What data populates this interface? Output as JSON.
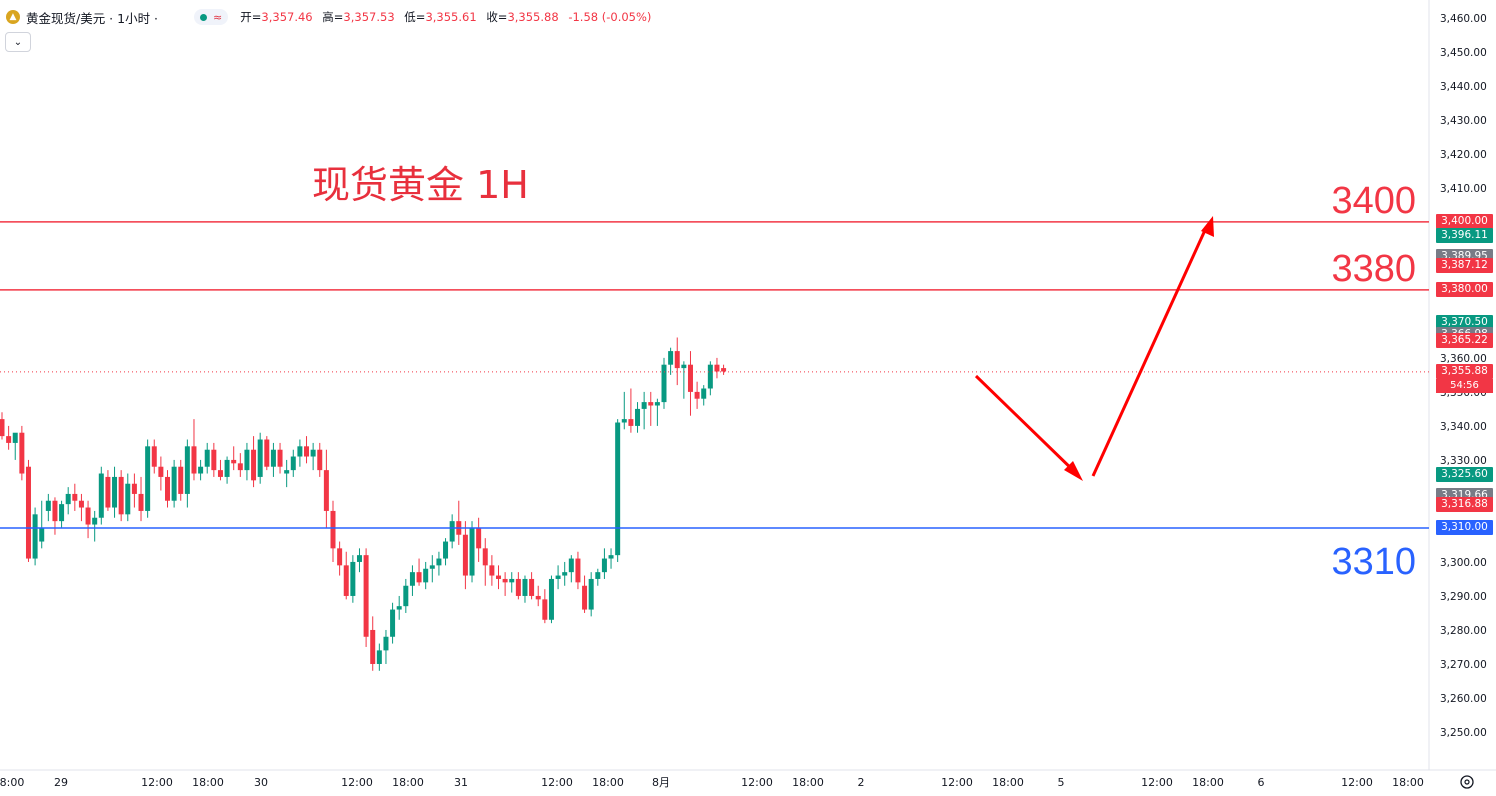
{
  "header": {
    "symbol": "黄金现货/美元 · 1小时 ·",
    "indicator": "≈",
    "open_label": "开=",
    "open": "3,357.46",
    "high_label": "高=",
    "high": "3,357.53",
    "low_label": "低=",
    "low": "3,355.61",
    "close_label": "收=",
    "close": "3,355.88",
    "change": "-1.58 (-0.05%)"
  },
  "collapse_icon": "chevron-down-icon",
  "price_tags": [
    {
      "id": "t3400",
      "text": "3,400.00",
      "color": "#f23645",
      "price": 3400
    },
    {
      "id": "t3396",
      "text": "3,396.11",
      "color": "#089981",
      "price": 3396.11
    },
    {
      "id": "t3389",
      "text": "3,389.95",
      "color": "#787b86",
      "price": 3389.95
    },
    {
      "id": "t3387",
      "text": "3,387.12",
      "color": "#f23645",
      "price": 3387.12
    },
    {
      "id": "t3380",
      "text": "3,380.00",
      "color": "#f23645",
      "price": 3380
    },
    {
      "id": "t3370",
      "text": "3,370.50",
      "color": "#089981",
      "price": 3370.5
    },
    {
      "id": "t3366",
      "text": "3,366.98",
      "color": "#787b86",
      "price": 3366.98
    },
    {
      "id": "t3365",
      "text": "3,365.22",
      "color": "#f23645",
      "price": 3365.22
    },
    {
      "id": "t3355",
      "text": "3,355.88",
      "color": "#f23645",
      "price": 3355.88
    },
    {
      "id": "t3325",
      "text": "3,325.60",
      "color": "#089981",
      "price": 3325.6
    },
    {
      "id": "t3319",
      "text": "3,319.66",
      "color": "#787b86",
      "price": 3319.66
    },
    {
      "id": "t3316",
      "text": "3,316.88",
      "color": "#f23645",
      "price": 3316.88
    },
    {
      "id": "t3310",
      "text": "3,310.00",
      "color": "#2962ff",
      "price": 3310
    }
  ],
  "countdown": "54:56",
  "chart_data": {
    "type": "candlestick",
    "title": "现货黄金 1H",
    "ylim": [
      3245,
      3462
    ],
    "y_ticks": [
      3250,
      3260,
      3270,
      3280,
      3290,
      3300,
      3310,
      3320,
      3330,
      3340,
      3350,
      3360,
      3370,
      3380,
      3390,
      3400,
      3410,
      3420,
      3430,
      3440,
      3450,
      3460
    ],
    "y_tick_labels": [
      "3,250.00",
      "3,260.00",
      "3,270.00",
      "3,280.00",
      "3,290.00",
      "3,300.00",
      "3,310.00",
      "3,320.00",
      "3,330.00",
      "3,340.00",
      "3,350.00",
      "3,360.00",
      "3,370.00",
      "3,380.00",
      "3,390.00",
      "3,400.00",
      "3,410.00",
      "3,420.00",
      "3,430.00",
      "3,440.00",
      "3,450.00",
      "3,460.00"
    ],
    "x_labels": [
      "8:00",
      "29",
      "12:00",
      "18:00",
      "30",
      "12:00",
      "18:00",
      "31",
      "12:00",
      "18:00",
      "8月",
      "12:00",
      "18:00",
      "2",
      "12:00",
      "18:00",
      "5",
      "12:00",
      "18:00",
      "6",
      "12:00",
      "18:00"
    ],
    "levels": [
      {
        "price": 3400,
        "label": "3400",
        "color": "#f23645"
      },
      {
        "price": 3380,
        "label": "3380",
        "color": "#f23645"
      },
      {
        "price": 3310,
        "label": "3310",
        "color": "#2962ff"
      }
    ],
    "current_price": 3355.88,
    "up_color": "#089981",
    "down_color": "#f23645",
    "candles": [
      [
        3342,
        3344,
        3336,
        3337
      ],
      [
        3337,
        3340,
        3333,
        3335
      ],
      [
        3335,
        3337,
        3330,
        3338
      ],
      [
        3338,
        3340,
        3324,
        3326
      ],
      [
        3328,
        3330,
        3300,
        3301
      ],
      [
        3301,
        3316,
        3299,
        3314
      ],
      [
        3306,
        3318,
        3304,
        3310
      ],
      [
        3315,
        3320,
        3312,
        3318
      ],
      [
        3318,
        3319,
        3308,
        3312
      ],
      [
        3312,
        3318,
        3310,
        3317
      ],
      [
        3317,
        3322,
        3314,
        3320
      ],
      [
        3320,
        3323,
        3315,
        3318
      ],
      [
        3318,
        3320,
        3312,
        3316
      ],
      [
        3316,
        3318,
        3307,
        3311
      ],
      [
        3311,
        3315,
        3306,
        3313
      ],
      [
        3313,
        3328,
        3311,
        3326
      ],
      [
        3325,
        3327,
        3315,
        3316
      ],
      [
        3316,
        3328,
        3313,
        3325
      ],
      [
        3325,
        3327,
        3312,
        3314
      ],
      [
        3314,
        3326,
        3312,
        3323
      ],
      [
        3323,
        3326,
        3316,
        3320
      ],
      [
        3320,
        3325,
        3312,
        3315
      ],
      [
        3315,
        3336,
        3313,
        3334
      ],
      [
        3334,
        3336,
        3326,
        3328
      ],
      [
        3328,
        3331,
        3321,
        3325
      ],
      [
        3325,
        3327,
        3316,
        3318
      ],
      [
        3318,
        3330,
        3316,
        3328
      ],
      [
        3328,
        3330,
        3318,
        3320
      ],
      [
        3320,
        3336,
        3316,
        3334
      ],
      [
        3334,
        3342,
        3324,
        3326
      ],
      [
        3326,
        3330,
        3324,
        3328
      ],
      [
        3328,
        3335,
        3326,
        3333
      ],
      [
        3333,
        3335,
        3325,
        3327
      ],
      [
        3327,
        3330,
        3324,
        3325
      ],
      [
        3325,
        3331,
        3323,
        3330
      ],
      [
        3330,
        3334,
        3327,
        3329
      ],
      [
        3329,
        3332,
        3325,
        3327
      ],
      [
        3327,
        3335,
        3324,
        3333
      ],
      [
        3333,
        3337,
        3322,
        3324
      ],
      [
        3325,
        3338,
        3323,
        3336
      ],
      [
        3336,
        3337,
        3327,
        3328
      ],
      [
        3328,
        3335,
        3325,
        3333
      ],
      [
        3333,
        3335,
        3326,
        3328
      ],
      [
        3326,
        3330,
        3322,
        3327
      ],
      [
        3327,
        3333,
        3325,
        3331
      ],
      [
        3331,
        3336,
        3328,
        3334
      ],
      [
        3334,
        3337,
        3329,
        3331
      ],
      [
        3331,
        3335,
        3327,
        3333
      ],
      [
        3333,
        3335,
        3325,
        3327
      ],
      [
        3327,
        3333,
        3310,
        3315
      ],
      [
        3315,
        3318,
        3300,
        3304
      ],
      [
        3304,
        3306,
        3296,
        3299
      ],
      [
        3299,
        3303,
        3289,
        3290
      ],
      [
        3290,
        3302,
        3288,
        3300
      ],
      [
        3300,
        3304,
        3297,
        3302
      ],
      [
        3302,
        3304,
        3275,
        3278
      ],
      [
        3280,
        3284,
        3268,
        3270
      ],
      [
        3270,
        3276,
        3268,
        3274
      ],
      [
        3274,
        3280,
        3270,
        3278
      ],
      [
        3278,
        3288,
        3276,
        3286
      ],
      [
        3286,
        3290,
        3283,
        3287
      ],
      [
        3287,
        3295,
        3285,
        3293
      ],
      [
        3293,
        3299,
        3290,
        3297
      ],
      [
        3297,
        3301,
        3293,
        3294
      ],
      [
        3294,
        3300,
        3292,
        3298
      ],
      [
        3298,
        3302,
        3294,
        3299
      ],
      [
        3299,
        3303,
        3296,
        3301
      ],
      [
        3301,
        3307,
        3299,
        3306
      ],
      [
        3306,
        3314,
        3304,
        3312
      ],
      [
        3312,
        3318,
        3305,
        3308
      ],
      [
        3308,
        3312,
        3292,
        3296
      ],
      [
        3296,
        3312,
        3294,
        3310
      ],
      [
        3310,
        3313,
        3300,
        3304
      ],
      [
        3304,
        3307,
        3293,
        3299
      ],
      [
        3299,
        3302,
        3293,
        3296
      ],
      [
        3296,
        3299,
        3292,
        3295
      ],
      [
        3295,
        3297,
        3290,
        3294
      ],
      [
        3294,
        3297,
        3291,
        3295
      ],
      [
        3295,
        3297,
        3289,
        3290
      ],
      [
        3290,
        3296,
        3288,
        3295
      ],
      [
        3295,
        3297,
        3289,
        3290
      ],
      [
        3290,
        3293,
        3287,
        3289
      ],
      [
        3289,
        3292,
        3282,
        3283
      ],
      [
        3283,
        3296,
        3282,
        3295
      ],
      [
        3295,
        3299,
        3292,
        3296
      ],
      [
        3296,
        3300,
        3293,
        3297
      ],
      [
        3297,
        3302,
        3294,
        3301
      ],
      [
        3301,
        3303,
        3292,
        3294
      ],
      [
        3293,
        3296,
        3285,
        3286
      ],
      [
        3286,
        3297,
        3284,
        3295
      ],
      [
        3295,
        3298,
        3293,
        3297
      ],
      [
        3297,
        3304,
        3295,
        3301
      ],
      [
        3301,
        3304,
        3298,
        3302
      ],
      [
        3302,
        3342,
        3300,
        3341
      ],
      [
        3341,
        3350,
        3339,
        3342
      ],
      [
        3342,
        3351,
        3338,
        3340
      ],
      [
        3340,
        3347,
        3338,
        3345
      ],
      [
        3345,
        3350,
        3339,
        3347
      ],
      [
        3347,
        3350,
        3340,
        3346
      ],
      [
        3346,
        3348,
        3340,
        3347
      ],
      [
        3347,
        3360,
        3345,
        3358
      ],
      [
        3358,
        3363,
        3355,
        3362
      ],
      [
        3362,
        3366,
        3352,
        3357
      ],
      [
        3357,
        3359,
        3348,
        3358
      ],
      [
        3358,
        3362,
        3343,
        3350
      ],
      [
        3350,
        3353,
        3345,
        3348
      ],
      [
        3348,
        3352,
        3346,
        3351
      ],
      [
        3351,
        3359,
        3349,
        3358
      ],
      [
        3358,
        3360,
        3354,
        3356
      ],
      [
        3357,
        3358,
        3355,
        3356
      ]
    ]
  }
}
